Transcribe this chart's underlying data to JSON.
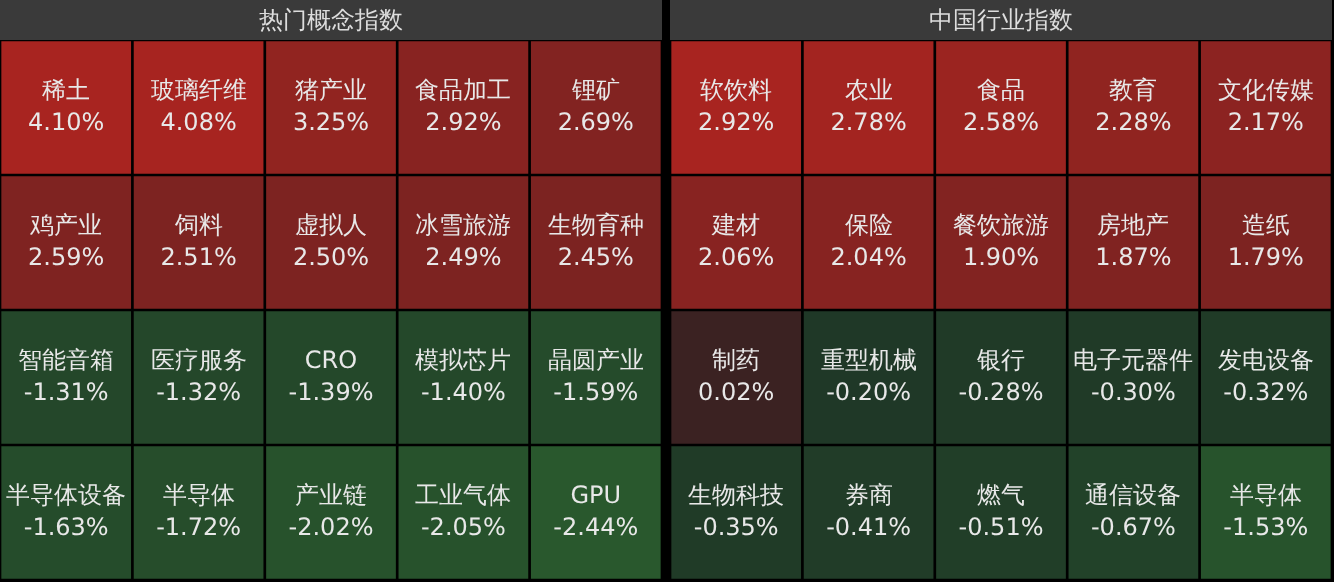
{
  "chart_data": [
    {
      "type": "other",
      "title": "热门概念指数",
      "categories": [
        "稀土",
        "玻璃纤维",
        "猪产业",
        "食品加工",
        "锂矿",
        "鸡产业",
        "饲料",
        "虚拟人",
        "冰雪旅游",
        "生物育种",
        "智能音箱",
        "医疗服务",
        "CRO",
        "模拟芯片",
        "晶圆产业",
        "半导体设备",
        "半导体",
        "产业链",
        "工业气体",
        "GPU"
      ],
      "values": [
        4.1,
        4.08,
        3.25,
        2.92,
        2.69,
        2.59,
        2.51,
        2.5,
        2.49,
        2.45,
        -1.31,
        -1.32,
        -1.39,
        -1.4,
        -1.59,
        -1.63,
        -1.72,
        -2.02,
        -2.05,
        -2.44
      ],
      "value_labels": [
        "4.10%",
        "4.08%",
        "3.25%",
        "2.92%",
        "2.69%",
        "2.59%",
        "2.51%",
        "2.50%",
        "2.49%",
        "2.45%",
        "-1.31%",
        "-1.32%",
        "-1.39%",
        "-1.40%",
        "-1.59%",
        "-1.63%",
        "-1.72%",
        "-2.02%",
        "-2.05%",
        "-2.44%"
      ]
    },
    {
      "type": "other",
      "title": "中国行业指数",
      "categories": [
        "软饮料",
        "农业",
        "食品",
        "教育",
        "文化传媒",
        "建材",
        "保险",
        "餐饮旅游",
        "房地产",
        "造纸",
        "制药",
        "重型机械",
        "银行",
        "电子元器件",
        "发电设备",
        "生物科技",
        "券商",
        "燃气",
        "通信设备",
        "半导体"
      ],
      "values": [
        2.92,
        2.78,
        2.58,
        2.28,
        2.17,
        2.06,
        2.04,
        1.9,
        1.87,
        1.79,
        0.02,
        -0.2,
        -0.28,
        -0.3,
        -0.32,
        -0.35,
        -0.41,
        -0.51,
        -0.67,
        -1.53
      ],
      "value_labels": [
        "2.92%",
        "2.78%",
        "2.58%",
        "2.28%",
        "2.17%",
        "2.06%",
        "2.04%",
        "1.90%",
        "1.87%",
        "1.79%",
        "0.02%",
        "-0.20%",
        "-0.28%",
        "-0.30%",
        "-0.32%",
        "-0.35%",
        "-0.41%",
        "-0.51%",
        "-0.67%",
        "-1.53%"
      ]
    }
  ]
}
